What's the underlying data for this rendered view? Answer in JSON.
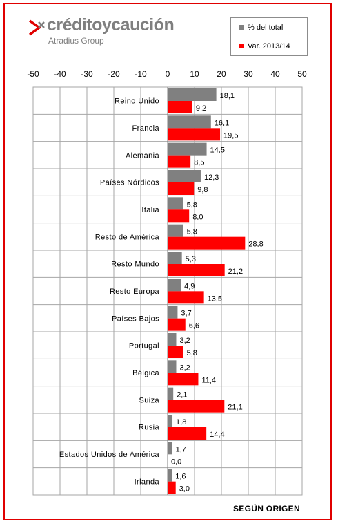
{
  "brand": {
    "name": "créditoycaución",
    "tagline": "Atradius Group",
    "mark_icon": "chevron-cross-icon"
  },
  "footer": "SEGÚN ORIGEN",
  "colors": {
    "frame": "#e00000",
    "series_total": "#808080",
    "series_var": "#ff0000",
    "grid": "#a6a6a6"
  },
  "chart_data": {
    "type": "bar",
    "orientation": "horizontal",
    "xlim": [
      -50,
      50
    ],
    "x_ticks": [
      -50,
      -40,
      -30,
      -20,
      -10,
      0,
      10,
      20,
      30,
      40,
      50
    ],
    "x_axis_position": "top",
    "grid": true,
    "legend_position": "top-right",
    "categories": [
      "Reino Unido",
      "Francia",
      "Alemania",
      "Países Nórdicos",
      "Italia",
      "Resto de América",
      "Resto Mundo",
      "Resto Europa",
      "Países Bajos",
      "Portugal",
      "Bélgica",
      "Suiza",
      "Rusia",
      "Estados Unidos de América",
      "Irlanda"
    ],
    "series": [
      {
        "name": "% del total",
        "color": "#808080",
        "values": [
          18.1,
          16.1,
          14.5,
          12.3,
          5.8,
          5.8,
          5.3,
          4.9,
          3.7,
          3.2,
          3.2,
          2.1,
          1.8,
          1.7,
          1.6
        ],
        "labels": [
          "18,1",
          "16,1",
          "14,5",
          "12,3",
          "5,8",
          "5,8",
          "5,3",
          "4,9",
          "3,7",
          "3,2",
          "3,2",
          "2,1",
          "1,8",
          "1,7",
          "1,6"
        ]
      },
      {
        "name": "Var. 2013/14",
        "color": "#ff0000",
        "values": [
          9.2,
          19.5,
          8.5,
          9.8,
          8.0,
          28.8,
          21.2,
          13.5,
          6.6,
          5.8,
          11.4,
          21.1,
          14.4,
          0.0,
          3.0
        ],
        "labels": [
          "9,2",
          "19,5",
          "8,5",
          "9,8",
          "8,0",
          "28,8",
          "21,2",
          "13,5",
          "6,6",
          "5,8",
          "11,4",
          "21,1",
          "14,4",
          "0,0",
          "3,0"
        ]
      }
    ]
  }
}
